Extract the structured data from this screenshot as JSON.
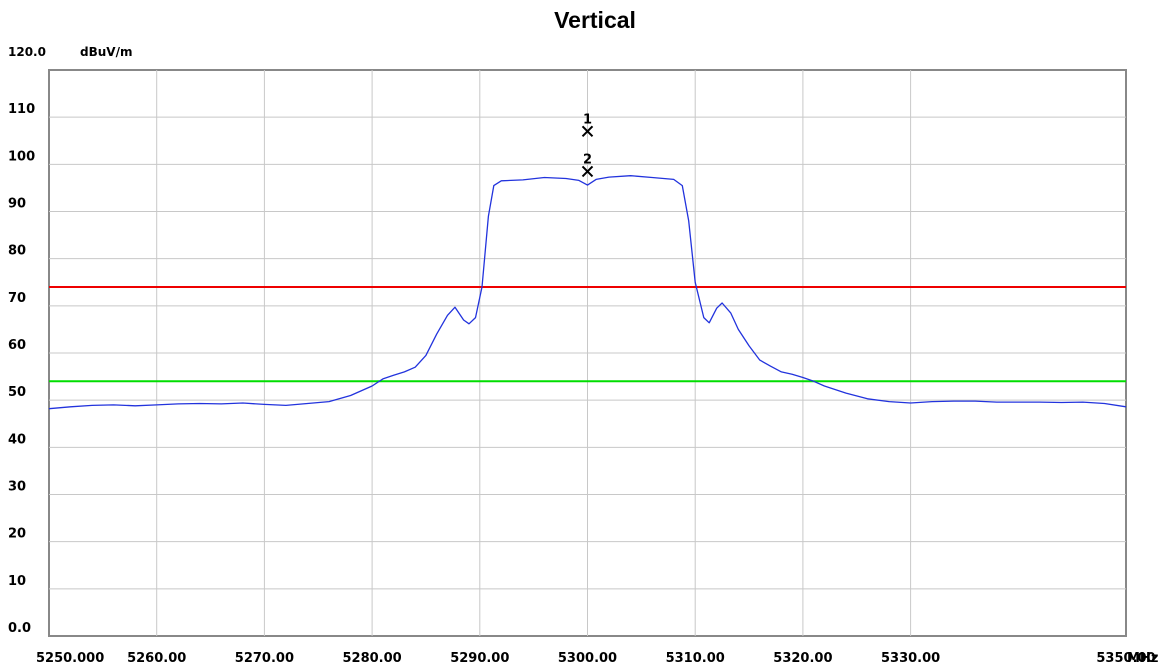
{
  "chart_data": {
    "type": "line",
    "title": "Vertical",
    "y_top_label": "120.0",
    "ylabel": "dBuV/m",
    "xlabel": "MHz",
    "xlim": [
      5250,
      5350
    ],
    "ylim": [
      0,
      120
    ],
    "grid": true,
    "x_ticks": [
      {
        "value": 5250,
        "label": "5250.000"
      },
      {
        "value": 5260,
        "label": "5260.00"
      },
      {
        "value": 5270,
        "label": "5270.00"
      },
      {
        "value": 5280,
        "label": "5280.00"
      },
      {
        "value": 5290,
        "label": "5290.00"
      },
      {
        "value": 5300,
        "label": "5300.00"
      },
      {
        "value": 5310,
        "label": "5310.00"
      },
      {
        "value": 5320,
        "label": "5320.00"
      },
      {
        "value": 5330,
        "label": "5330.00"
      },
      {
        "value": 5350,
        "label": "5350.00"
      }
    ],
    "y_ticks": [
      {
        "value": 110,
        "label": "110"
      },
      {
        "value": 100,
        "label": "100"
      },
      {
        "value": 90,
        "label": "90"
      },
      {
        "value": 80,
        "label": "80"
      },
      {
        "value": 70,
        "label": "70"
      },
      {
        "value": 60,
        "label": "60"
      },
      {
        "value": 50,
        "label": "50"
      },
      {
        "value": 40,
        "label": "40"
      },
      {
        "value": 30,
        "label": "30"
      },
      {
        "value": 20,
        "label": "20"
      },
      {
        "value": 10,
        "label": "10"
      },
      {
        "value": 0,
        "label": "0.0"
      }
    ],
    "limit_lines": [
      {
        "value": 74,
        "color": "#ee0000"
      },
      {
        "value": 54,
        "color": "#00dd00"
      }
    ],
    "markers": [
      {
        "label": "1",
        "x": 5300,
        "y": 107
      },
      {
        "label": "2",
        "x": 5300,
        "y": 98.5
      }
    ],
    "series": [
      {
        "color": "#2233dd",
        "points": [
          [
            5250,
            48.2
          ],
          [
            5252,
            48.6
          ],
          [
            5254,
            48.9
          ],
          [
            5256,
            49.0
          ],
          [
            5258,
            48.8
          ],
          [
            5260,
            49.0
          ],
          [
            5262,
            49.2
          ],
          [
            5264,
            49.3
          ],
          [
            5266,
            49.2
          ],
          [
            5268,
            49.4
          ],
          [
            5270,
            49.1
          ],
          [
            5272,
            48.9
          ],
          [
            5274,
            49.3
          ],
          [
            5276,
            49.7
          ],
          [
            5278,
            51.0
          ],
          [
            5280,
            53.0
          ],
          [
            5281,
            54.5
          ],
          [
            5282,
            55.3
          ],
          [
            5283,
            56.0
          ],
          [
            5284,
            57.0
          ],
          [
            5285,
            59.5
          ],
          [
            5286,
            64.0
          ],
          [
            5287,
            68.0
          ],
          [
            5287.7,
            69.7
          ],
          [
            5288.5,
            67.0
          ],
          [
            5289,
            66.2
          ],
          [
            5289.6,
            67.5
          ],
          [
            5290.2,
            74.0
          ],
          [
            5290.8,
            89.0
          ],
          [
            5291.3,
            95.5
          ],
          [
            5292,
            96.5
          ],
          [
            5294,
            96.7
          ],
          [
            5296,
            97.2
          ],
          [
            5298,
            97.0
          ],
          [
            5299.2,
            96.6
          ],
          [
            5300,
            95.6
          ],
          [
            5300.8,
            96.8
          ],
          [
            5302,
            97.3
          ],
          [
            5304,
            97.6
          ],
          [
            5306,
            97.2
          ],
          [
            5308,
            96.8
          ],
          [
            5308.8,
            95.5
          ],
          [
            5309.4,
            88.0
          ],
          [
            5310.0,
            75.0
          ],
          [
            5310.8,
            67.5
          ],
          [
            5311.3,
            66.4
          ],
          [
            5312.0,
            69.5
          ],
          [
            5312.5,
            70.6
          ],
          [
            5313.3,
            68.5
          ],
          [
            5314,
            65.0
          ],
          [
            5315,
            61.5
          ],
          [
            5316,
            58.5
          ],
          [
            5317,
            57.2
          ],
          [
            5318,
            56.0
          ],
          [
            5319,
            55.5
          ],
          [
            5320,
            54.8
          ],
          [
            5321,
            54.0
          ],
          [
            5322,
            53.0
          ],
          [
            5324,
            51.5
          ],
          [
            5326,
            50.3
          ],
          [
            5328,
            49.7
          ],
          [
            5330,
            49.4
          ],
          [
            5332,
            49.7
          ],
          [
            5334,
            49.8
          ],
          [
            5336,
            49.8
          ],
          [
            5338,
            49.6
          ],
          [
            5340,
            49.6
          ],
          [
            5342,
            49.6
          ],
          [
            5344,
            49.5
          ],
          [
            5346,
            49.6
          ],
          [
            5348,
            49.3
          ],
          [
            5350,
            48.6
          ]
        ]
      }
    ]
  }
}
